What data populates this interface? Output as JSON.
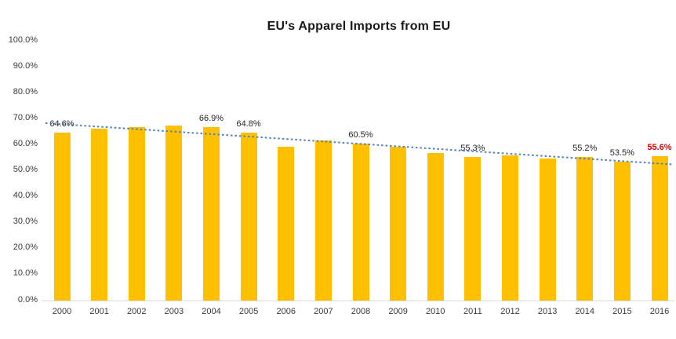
{
  "title": "EU's Apparel Imports from EU",
  "colors": {
    "bar": "#FFC000",
    "trendline": "#4E81BD",
    "data_label": "#262626",
    "highlight_label": "#E00000",
    "axis_line": "#D9D9D9",
    "tick_label": "#3B3B3B"
  },
  "chart_data": {
    "type": "bar",
    "title": "EU's Apparel Imports from EU",
    "categories": [
      "2000",
      "2001",
      "2002",
      "2003",
      "2004",
      "2005",
      "2006",
      "2007",
      "2008",
      "2009",
      "2010",
      "2011",
      "2012",
      "2013",
      "2014",
      "2015",
      "2016"
    ],
    "values": [
      64.6,
      66.2,
      66.8,
      67.3,
      66.9,
      64.8,
      59.2,
      61.6,
      60.5,
      59.3,
      56.8,
      55.3,
      55.8,
      54.8,
      55.2,
      53.5,
      55.6
    ],
    "data_labels": [
      "64.6%",
      null,
      null,
      null,
      "66.9%",
      "64.8%",
      null,
      null,
      "60.5%",
      null,
      null,
      "55.3%",
      null,
      null,
      "55.2%",
      "53.5%",
      "55.6%"
    ],
    "highlight_label_index": 16,
    "xlabel": "",
    "ylabel": "",
    "ylim": [
      0,
      100
    ],
    "ytick_values": [
      100,
      90,
      80,
      70,
      60,
      50,
      40,
      30,
      20,
      10,
      0
    ],
    "ytick_labels": [
      "100.0%",
      "90.0%",
      "80.0%",
      "70.0%",
      "60.0%",
      "50.0%",
      "40.0%",
      "30.0%",
      "20.0%",
      "10.0%",
      "0.0%"
    ],
    "grid": false,
    "legend": false,
    "bar_color": "#FFC000",
    "trendline": {
      "type": "linear",
      "style": "dotted",
      "color": "#4E81BD",
      "start_value": 68.3,
      "end_value": 52.4
    }
  }
}
